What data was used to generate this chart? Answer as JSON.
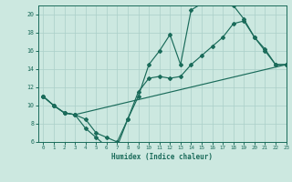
{
  "xlabel": "Humidex (Indice chaleur)",
  "xlim": [
    -0.5,
    23
  ],
  "ylim": [
    6,
    21
  ],
  "yticks": [
    6,
    8,
    10,
    12,
    14,
    16,
    18,
    20
  ],
  "xticks": [
    0,
    1,
    2,
    3,
    4,
    5,
    6,
    7,
    8,
    9,
    10,
    11,
    12,
    13,
    14,
    15,
    16,
    17,
    18,
    19,
    20,
    21,
    22,
    23
  ],
  "background_color": "#cce8e0",
  "grid_color": "#aacfc8",
  "line_color": "#1a6b5a",
  "line1_x": [
    0,
    1,
    2,
    3,
    4,
    5,
    6,
    7,
    8,
    9,
    10,
    11,
    12,
    13,
    14,
    15,
    16,
    17,
    18,
    19,
    20,
    21,
    22,
    23
  ],
  "line1_y": [
    11,
    10,
    9.2,
    9.0,
    7.5,
    6.5,
    5.5,
    5.5,
    8.5,
    11.0,
    14.5,
    16.0,
    17.8,
    14.5,
    20.5,
    21.2,
    21.3,
    21.2,
    21.0,
    19.5,
    17.5,
    16.0,
    14.5,
    14.5
  ],
  "line2_x": [
    0,
    1,
    2,
    3,
    4,
    5,
    6,
    7,
    8,
    9,
    10,
    11,
    12,
    13,
    14,
    15,
    16,
    17,
    18,
    19,
    20,
    21,
    22,
    23
  ],
  "line2_y": [
    11,
    10,
    9.2,
    9.0,
    8.5,
    7.0,
    6.5,
    6.0,
    8.5,
    11.5,
    13.0,
    13.2,
    13.0,
    13.2,
    14.5,
    15.5,
    16.5,
    17.5,
    19.0,
    19.3,
    17.5,
    16.2,
    14.5,
    14.5
  ],
  "line3_x": [
    0,
    1,
    2,
    3,
    23
  ],
  "line3_y": [
    11,
    10,
    9.2,
    9.0,
    14.5
  ]
}
